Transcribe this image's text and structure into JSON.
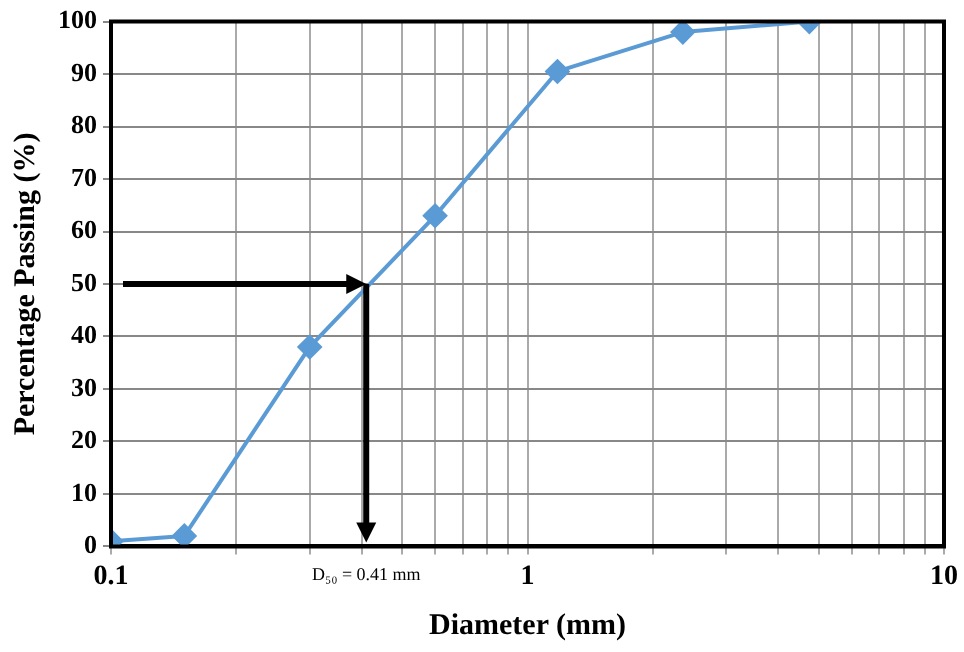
{
  "chart_data": {
    "type": "line",
    "xlabel": "Diameter (mm)",
    "ylabel": "Percentage Passing (%)",
    "x": [
      0.1,
      0.15,
      0.3,
      0.6,
      1.18,
      2.36,
      4.75
    ],
    "series": [
      {
        "color": "#5b9bd5",
        "values": [
          1,
          2,
          38,
          63,
          90.5,
          98,
          100
        ]
      }
    ],
    "xlim": [
      0.1,
      10
    ],
    "xticks": [
      0.1,
      1,
      10
    ],
    "ylim": [
      0,
      100
    ],
    "yticks": [
      0,
      10,
      20,
      30,
      40,
      50,
      60,
      70,
      80,
      90,
      100
    ],
    "log": "x",
    "grid": true,
    "legend": false,
    "marker": "diamond",
    "line_style": "solid",
    "ref_lines": [
      {
        "axis": "y",
        "value": 50,
        "color": "#000000"
      },
      {
        "axis": "x",
        "value": 0.41,
        "label": "D₅₀ = 0.41 mm",
        "color": "#000000"
      }
    ]
  }
}
